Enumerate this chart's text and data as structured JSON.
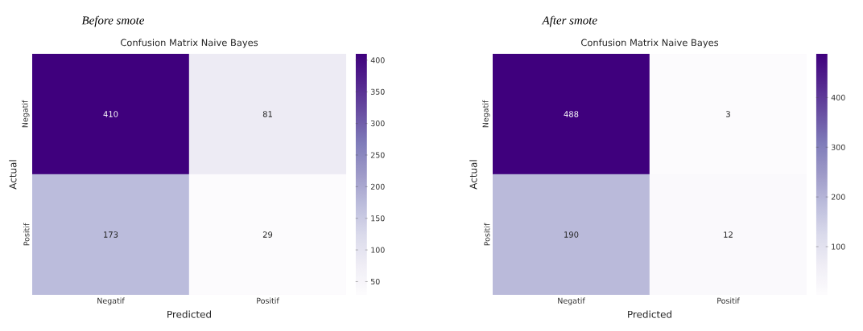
{
  "chart_data": [
    {
      "type": "heatmap",
      "title": "Confusion Matrix Naive Bayes",
      "annotations": [
        "Before smote"
      ],
      "xlabel": "Predicted",
      "ylabel": "Actual",
      "categories": [
        "Negatif",
        "Positif"
      ],
      "y_categories": [
        "Negatif",
        "Positif"
      ],
      "cells": [
        [
          410,
          81
        ],
        [
          173,
          29
        ]
      ],
      "data_labels": true,
      "clim": [
        29,
        410
      ],
      "cticks": [
        50,
        100,
        150,
        200,
        250,
        300,
        350,
        400
      ]
    },
    {
      "type": "heatmap",
      "title": "Confusion Matrix Naive Bayes",
      "annotations": [
        "After smote"
      ],
      "xlabel": "Predicted",
      "ylabel": "Actual",
      "categories": [
        "Negatif",
        "Positif"
      ],
      "y_categories": [
        "Negatif",
        "Positif"
      ],
      "cells": [
        [
          488,
          3
        ],
        [
          190,
          12
        ]
      ],
      "data_labels": true,
      "clim": [
        3,
        488
      ],
      "cticks": [
        100,
        200,
        300,
        400
      ]
    }
  ]
}
